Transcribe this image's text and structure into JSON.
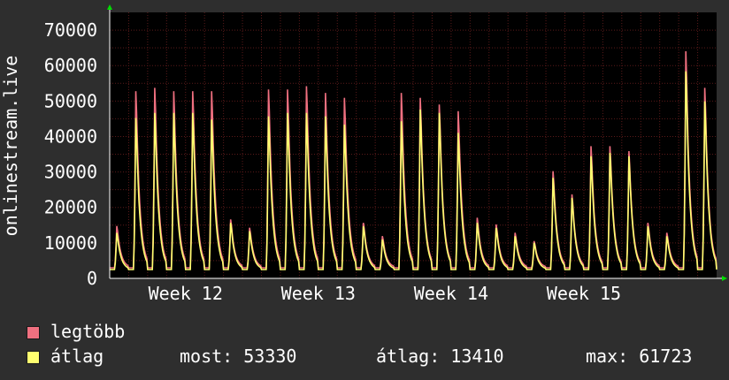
{
  "chart_data": {
    "type": "area",
    "ylabel": "onlinestream.live",
    "ylim": [
      0,
      75000
    ],
    "y_ticks": [
      "0",
      "10000",
      "20000",
      "30000",
      "40000",
      "50000",
      "60000",
      "70000"
    ],
    "x_ticks": [
      "Week 12",
      "Week 13",
      "Week 14",
      "Week 15"
    ],
    "grid": true,
    "colors": {
      "background": "#2e2e2e",
      "plot_background": "#000000",
      "grid": "#5a1a1a",
      "max_series": "#f07080",
      "avg_series": "#ffff70",
      "axis": "#ffffff",
      "arrow": "#00dd00"
    },
    "days_per_week": 7,
    "series": [
      {
        "name": "legtöbb",
        "daily_peaks": [
          15500,
          56000,
          57000,
          56000,
          56000,
          56000,
          17500,
          15000,
          56500,
          56500,
          57500,
          55500,
          54000,
          16500,
          12500,
          55500,
          54000,
          52000,
          50000,
          18000,
          16000,
          13500,
          11000,
          32000,
          25000,
          39500,
          39500,
          38000,
          16500,
          13500,
          68000,
          57000
        ]
      },
      {
        "name": "átlag",
        "daily_peaks": [
          13500,
          48000,
          49500,
          49500,
          49500,
          47500,
          16500,
          14000,
          48500,
          49500,
          49500,
          48500,
          46000,
          15500,
          11500,
          47000,
          50500,
          49500,
          43500,
          16500,
          15000,
          12500,
          10500,
          30000,
          24000,
          36500,
          37500,
          36500,
          15500,
          12500,
          62000,
          53000
        ]
      }
    ]
  },
  "legend": {
    "max_label": "legtöbb",
    "avg_label": "átlag"
  },
  "stats": {
    "most": "most: 53330",
    "avg": "átlag: 13410",
    "max": "max: 61723"
  }
}
